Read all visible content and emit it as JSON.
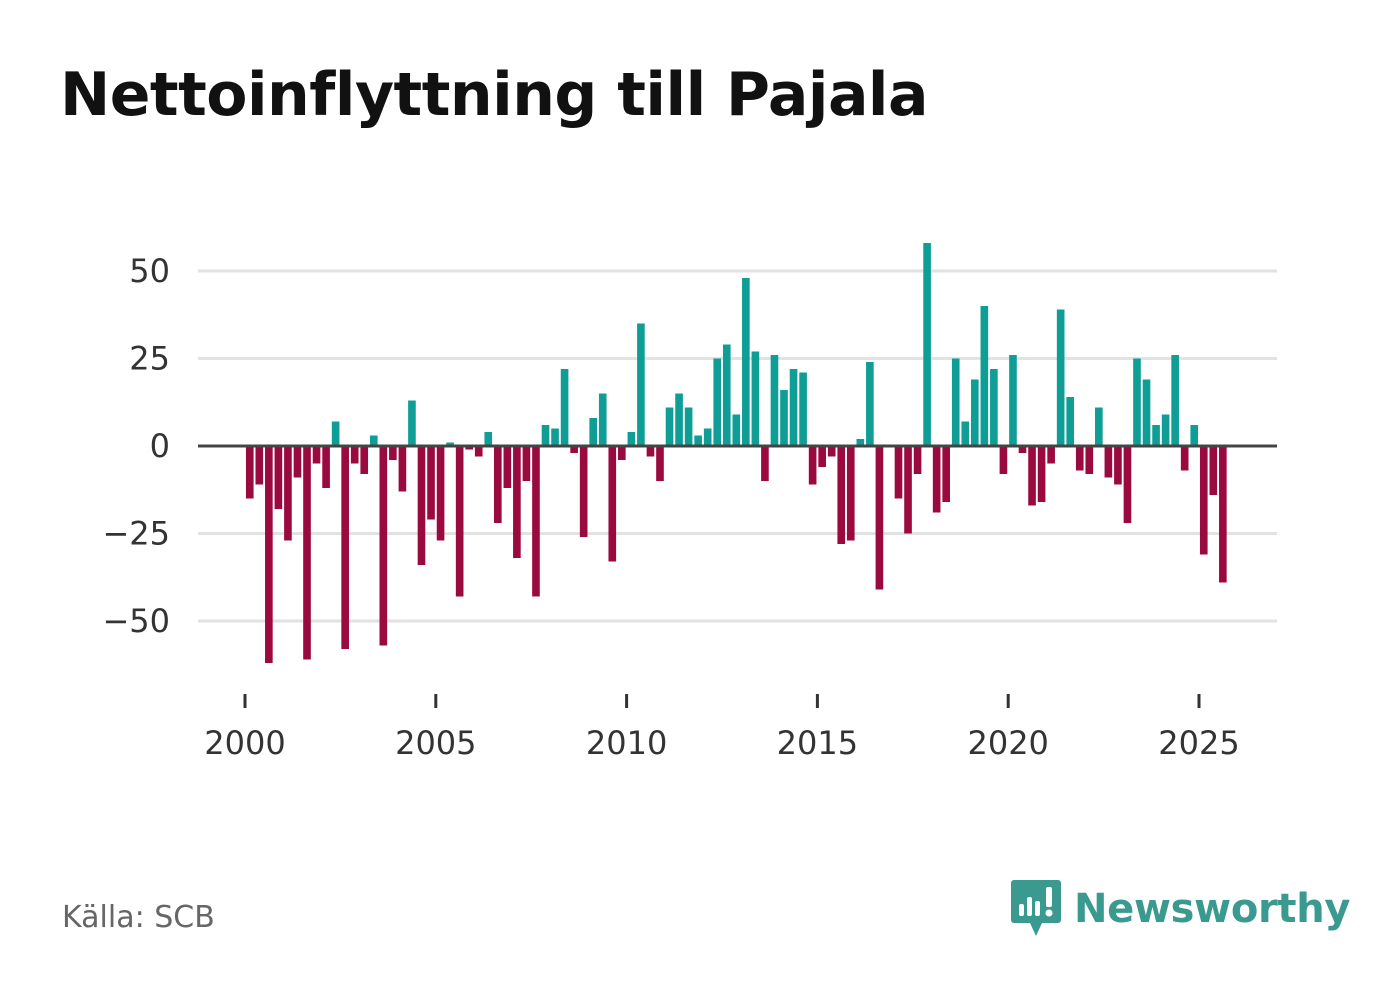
{
  "title": "Nettoinflyttning till Pajala",
  "source": "Källa: SCB",
  "brand": {
    "name": "Newsworthy",
    "icon": "newsworthy-logo-icon"
  },
  "colors": {
    "positive": "#0f9e96",
    "negative": "#9b0a3e",
    "grid": "#e2e2e2",
    "zero_line": "#444444",
    "brand": "#3b9a8f"
  },
  "chart_data": {
    "type": "bar",
    "title": "Nettoinflyttning till Pajala",
    "xlabel": "",
    "ylabel": "",
    "frequency": "quarterly",
    "x_start": 2000.125,
    "x_step": 0.25,
    "xlim": [
      1999.3,
      2027.2
    ],
    "ylim": [
      -70,
      60
    ],
    "x_ticks": [
      2000,
      2005,
      2010,
      2015,
      2020,
      2025
    ],
    "y_ticks": [
      50,
      25,
      0,
      -25,
      -50
    ],
    "y_tick_labels": [
      "50",
      "25",
      "0",
      "−25",
      "−50"
    ],
    "grid": true,
    "values": [
      -15,
      -11,
      -62,
      -18,
      -27,
      -9,
      -61,
      -5,
      -12,
      7,
      -58,
      -5,
      -8,
      3,
      -57,
      -4,
      -13,
      13,
      -34,
      -21,
      -27,
      1,
      -43,
      -1,
      -3,
      4,
      -22,
      -12,
      -32,
      -10,
      -43,
      6,
      5,
      22,
      -2,
      -26,
      8,
      15,
      -33,
      -4,
      4,
      35,
      -3,
      -10,
      11,
      15,
      11,
      3,
      5,
      25,
      29,
      9,
      48,
      27,
      -10,
      26,
      16,
      22,
      21,
      -11,
      -6,
      -3,
      -28,
      -27,
      2,
      24,
      -41,
      0,
      -15,
      -25,
      -8,
      58,
      -19,
      -16,
      25,
      7,
      19,
      40,
      22,
      -8,
      26,
      -2,
      -17,
      -16,
      -5,
      39,
      14,
      -7,
      -8,
      11,
      -9,
      -11,
      -22,
      25,
      19,
      6,
      9,
      26,
      -7,
      6,
      -31,
      -14,
      -39
    ]
  }
}
